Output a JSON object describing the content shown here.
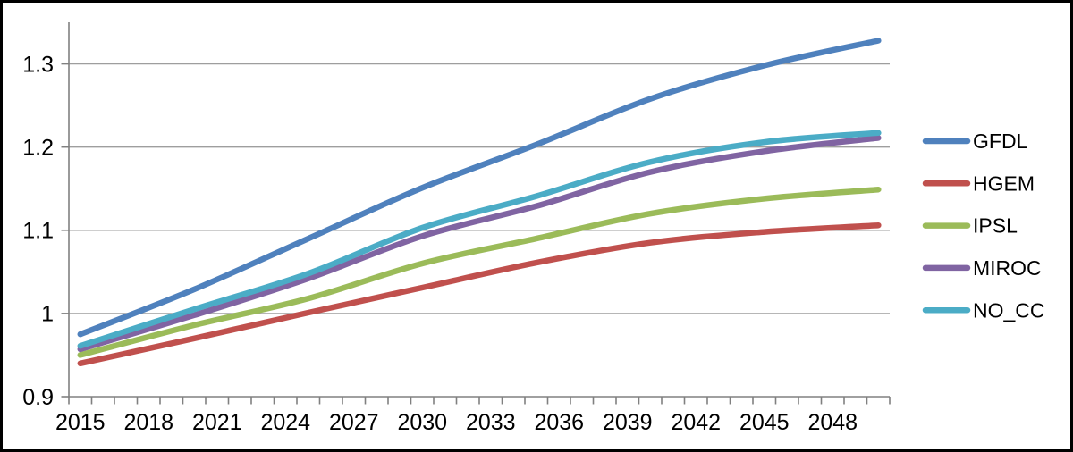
{
  "chart_data": {
    "type": "line",
    "title": "",
    "xlabel": "",
    "ylabel": "",
    "x": [
      2015,
      2020,
      2025,
      2030,
      2035,
      2040,
      2045,
      2050
    ],
    "series": [
      {
        "name": "GFDL",
        "color": "#4F81BD",
        "values": [
          0.975,
          1.029,
          1.09,
          1.151,
          1.203,
          1.258,
          1.298,
          1.328
        ]
      },
      {
        "name": "HGEM",
        "color": "#C0504D",
        "values": [
          0.94,
          0.97,
          1.001,
          1.031,
          1.061,
          1.085,
          1.098,
          1.106
        ]
      },
      {
        "name": "IPSL",
        "color": "#9BBB59",
        "values": [
          0.95,
          0.986,
          1.018,
          1.06,
          1.09,
          1.12,
          1.138,
          1.149
        ]
      },
      {
        "name": "MIROC",
        "color": "#8064A2",
        "values": [
          0.957,
          0.998,
          1.042,
          1.093,
          1.129,
          1.17,
          1.195,
          1.211
        ]
      },
      {
        "name": "NO_CC",
        "color": "#4BACC6",
        "values": [
          0.961,
          1.005,
          1.048,
          1.103,
          1.141,
          1.182,
          1.206,
          1.217
        ]
      }
    ],
    "ylim": [
      0.9,
      1.35
    ],
    "y_tick_labels": [
      "0.9",
      "1",
      "1.1",
      "1.2",
      "1.3"
    ],
    "x_tick_labels": [
      "2015",
      "2018",
      "2021",
      "2024",
      "2027",
      "2030",
      "2033",
      "2036",
      "2039",
      "2042",
      "2045",
      "2048"
    ],
    "x_axis": {
      "start": 2015,
      "end": 2050,
      "minor_tick_every_years": 1,
      "label_every_years": 3
    },
    "grid": "horizontal",
    "smoothed_lines": true,
    "legend": {
      "position": "right",
      "items": [
        "GFDL",
        "HGEM",
        "IPSL",
        "MIROC",
        "NO_CC"
      ]
    },
    "colors": {
      "grid": "#9E9E9E",
      "axis": "#808080",
      "text": "#000000",
      "frame": "#000000",
      "background": "#FFFFFF"
    }
  }
}
